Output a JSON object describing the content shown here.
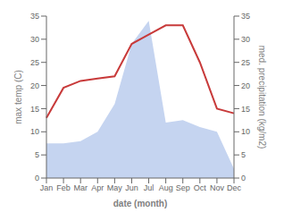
{
  "chart_data": {
    "type": "line",
    "xlabel": "date (month)",
    "ylabel": "max temp (C)",
    "y2label": "med. precipitation (kg/m2)",
    "categories": [
      "Jan",
      "Feb",
      "Mar",
      "Apr",
      "May",
      "Jun",
      "Jul",
      "Aug",
      "Sep",
      "Oct",
      "Nov",
      "Dec"
    ],
    "series": [
      {
        "type": "area",
        "color": "#c5d4f0",
        "axis": "y2",
        "values": [
          7.5,
          7.5,
          8.0,
          10.0,
          16.0,
          29.0,
          34.0,
          12.0,
          12.5,
          11.0,
          10.0,
          2.0
        ]
      },
      {
        "type": "line",
        "color": "#c83a3a",
        "values": [
          13.0,
          19.5,
          21.0,
          21.5,
          22.0,
          29.0,
          31.0,
          33.0,
          33.0,
          25.0,
          15.0,
          14.0
        ]
      }
    ],
    "ylim": [
      0,
      35
    ],
    "yticks": [
      0,
      5,
      10,
      15,
      20,
      25,
      30,
      35
    ],
    "y2lim": [
      0,
      35
    ],
    "y2ticks": [
      0,
      5,
      10,
      15,
      20,
      25,
      30,
      35
    ],
    "grid": false
  }
}
